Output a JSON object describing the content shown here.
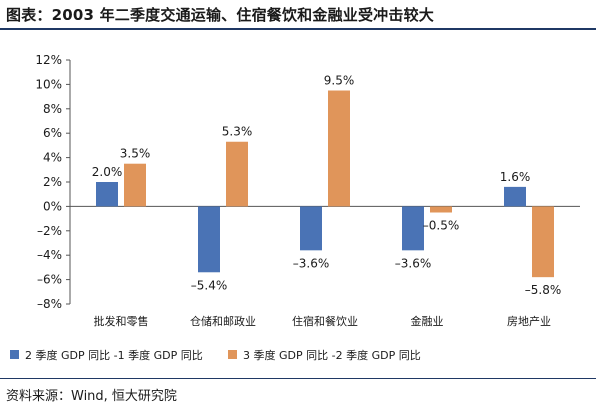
{
  "title": "图表：2003 年二季度交通运输、住宿餐饮和金融业受冲击较大",
  "source": "资料来源：Wind, 恒大研究院",
  "chart_data": {
    "type": "bar",
    "categories": [
      "批发和零售",
      "仓储和邮政业",
      "住宿和餐饮业",
      "金融业",
      "房地产业"
    ],
    "series": [
      {
        "name": "2 季度 GDP 同比 -1 季度 GDP 同比",
        "color": "#4a73b5",
        "values": [
          2.0,
          -5.4,
          -3.6,
          -3.6,
          1.6
        ],
        "labels": [
          "2.0%",
          "–5.4%",
          "–3.6%",
          "–3.6%",
          "1.6%"
        ]
      },
      {
        "name": "3 季度 GDP 同比 -2 季度 GDP 同比",
        "color": "#e0955a",
        "values": [
          3.5,
          5.3,
          9.5,
          -0.5,
          -5.8
        ],
        "labels": [
          "3.5%",
          "5.3%",
          "9.5%",
          "–0.5%",
          "–5.8%"
        ]
      }
    ],
    "ylim": [
      -8,
      12
    ],
    "yticks": [
      -8,
      -6,
      -4,
      -2,
      0,
      2,
      4,
      6,
      8,
      10,
      12
    ],
    "ytick_labels": [
      "–8%",
      "–6%",
      "–4%",
      "–2%",
      "0%",
      "2%",
      "4%",
      "6%",
      "8%",
      "10%",
      "12%"
    ],
    "legend_position": "bottom",
    "grid": false
  }
}
